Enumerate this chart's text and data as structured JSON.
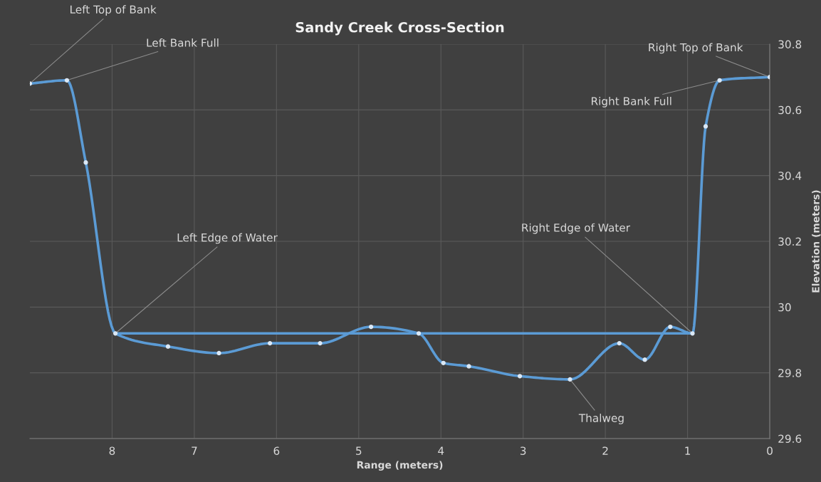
{
  "chart_data": {
    "type": "line",
    "title": "Sandy Creek Cross-Section",
    "xlabel": "Range (meters)",
    "ylabel": "Elevation (meters)",
    "series": [
      {
        "color": "#5b9bd5",
        "marker": "circle",
        "x": [
          9.0,
          8.55,
          8.32,
          7.96,
          7.32,
          6.7,
          6.08,
          5.47,
          4.85,
          4.27,
          3.97,
          3.66,
          3.04,
          2.43,
          1.83,
          1.52,
          1.21,
          0.94,
          0.78,
          0.61,
          0.0
        ],
        "values": [
          30.68,
          30.69,
          30.44,
          29.92,
          29.88,
          29.86,
          29.89,
          29.89,
          29.94,
          29.92,
          29.83,
          29.82,
          29.79,
          29.78,
          29.89,
          29.84,
          29.94,
          29.92,
          30.55,
          30.69,
          30.7
        ]
      },
      {
        "color": "#5b9bd5",
        "marker": "none",
        "x": [
          7.96,
          0.94
        ],
        "values": [
          29.92,
          29.92
        ]
      }
    ],
    "annotations": [
      {
        "text": "Left Top of Bank",
        "x": 9.0,
        "y": 30.68
      },
      {
        "text": "Left Bank Full",
        "x": 8.55,
        "y": 30.69
      },
      {
        "text": "Left Edge of Water",
        "x": 7.96,
        "y": 29.92
      },
      {
        "text": "Right Edge of Water",
        "x": 0.94,
        "y": 29.92
      },
      {
        "text": "Thalweg",
        "x": 2.43,
        "y": 29.78
      },
      {
        "text": "Right Bank Full",
        "x": 0.61,
        "y": 30.69
      },
      {
        "text": "Right Top of Bank",
        "x": 0.0,
        "y": 30.7
      }
    ],
    "xlim": [
      9,
      0
    ],
    "xticks": [
      0,
      1,
      2,
      3,
      4,
      5,
      6,
      7,
      8
    ],
    "ylim": [
      29.6,
      30.8
    ],
    "yticks": [
      29.6,
      29.8,
      30,
      30.2,
      30.4,
      30.6,
      30.8
    ],
    "grid": true,
    "line_style": "solid"
  }
}
